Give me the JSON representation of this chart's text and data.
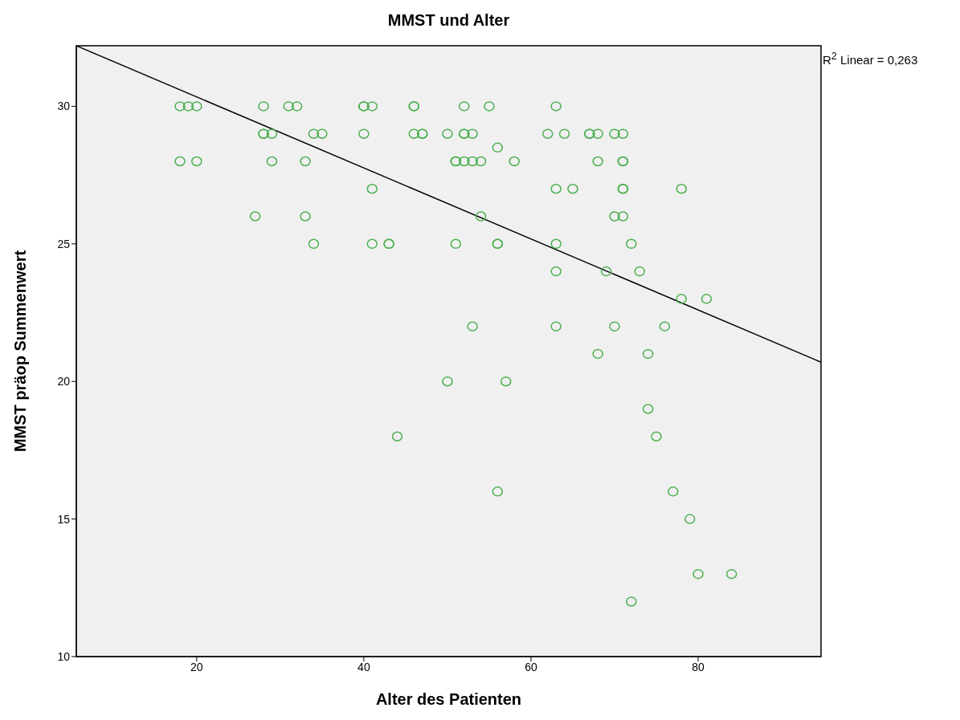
{
  "chart_data": {
    "type": "scatter",
    "title": "MMST und Alter",
    "xlabel": "Alter des Patienten",
    "ylabel": "MMST präop Summenwert",
    "annotations": [
      "R$^{2}$ Linear = 0,263"
    ],
    "xlim": [
      5.6,
      94.7
    ],
    "xticks": [
      20,
      40,
      60,
      80
    ],
    "ylim": [
      10,
      32.2
    ],
    "yticks": [
      10,
      15,
      20,
      25,
      30
    ],
    "grid": false,
    "marker": "circle",
    "series": [
      {
        "color": "#4cb050",
        "x": [
          18,
          19,
          20,
          28,
          31,
          32,
          40,
          40,
          41,
          46,
          46,
          52,
          55,
          63,
          28,
          28,
          29,
          34,
          35,
          40,
          46,
          47,
          47,
          50,
          52,
          52,
          53,
          62,
          64,
          67,
          67,
          68,
          70,
          71,
          56,
          18,
          20,
          29,
          33,
          51,
          51,
          52,
          53,
          54,
          58,
          68,
          71,
          71,
          41,
          63,
          65,
          71,
          71,
          78,
          27,
          33,
          54,
          70,
          71,
          34,
          41,
          43,
          43,
          51,
          56,
          56,
          63,
          72,
          63,
          69,
          73,
          78,
          81,
          53,
          63,
          70,
          76,
          68,
          74,
          50,
          57,
          74,
          44,
          75,
          56,
          77,
          79,
          80,
          84,
          72
        ],
        "values": [
          30,
          30,
          30,
          30,
          30,
          30,
          30,
          30,
          30,
          30,
          30,
          30,
          30,
          30,
          29,
          29,
          29,
          29,
          29,
          29,
          29,
          29,
          29,
          29,
          29,
          29,
          29,
          29,
          29,
          29,
          29,
          29,
          29,
          29,
          28.5,
          28,
          28,
          28,
          28,
          28,
          28,
          28,
          28,
          28,
          28,
          28,
          28,
          28,
          27,
          27,
          27,
          27,
          27,
          27,
          26,
          26,
          26,
          26,
          26,
          25,
          25,
          25,
          25,
          25,
          25,
          25,
          25,
          25,
          24,
          24,
          24,
          23,
          23,
          22,
          22,
          22,
          22,
          21,
          21,
          20,
          20,
          19,
          18,
          18,
          16,
          16,
          15,
          13,
          13,
          12
        ]
      },
      {
        "type": "line",
        "color": "#000000",
        "x": [
          5.6,
          94.7
        ],
        "values": [
          32.2,
          20.7
        ],
        "marker": "none"
      }
    ]
  }
}
